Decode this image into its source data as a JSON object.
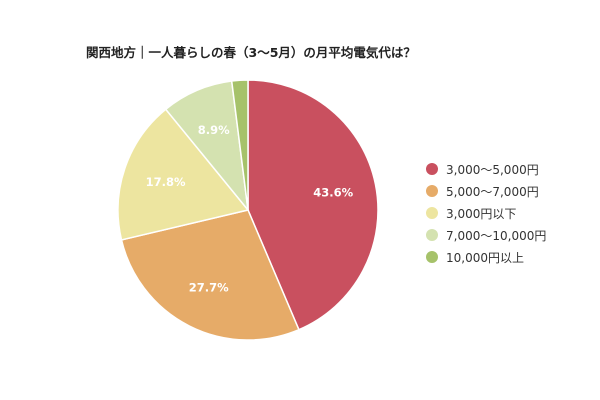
{
  "chart_data": {
    "type": "pie",
    "title": "関西地方｜一人暮らしの春（3〜5月）の月平均電気代は？",
    "categories": [
      "3,000〜5,000円",
      "5,000〜7,000円",
      "3,000円以下",
      "7,000〜10,000円",
      "10,000円以上"
    ],
    "values": [
      43.6,
      27.7,
      17.8,
      8.9,
      2.0
    ],
    "value_labels": [
      "43.6%",
      "27.7%",
      "17.8%",
      "8.9%",
      ""
    ],
    "colors": [
      "#c9505f",
      "#e6ab68",
      "#ede5a0",
      "#d4e2b0",
      "#a6c26a"
    ],
    "legend_position": "right",
    "start_angle": "top, clockwise"
  }
}
